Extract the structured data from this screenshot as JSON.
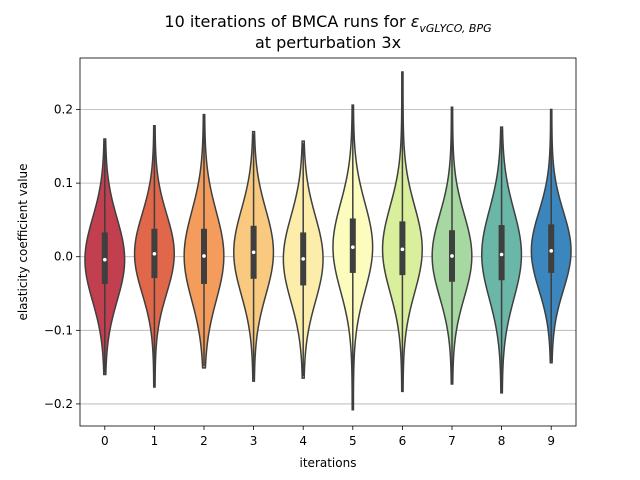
{
  "chart_data": {
    "type": "violin",
    "title_line1_prefix": "10 iterations of BMCA runs for ",
    "title_symbol": "ε",
    "title_subscript": "vGLYCO, BPG",
    "title_line2": "at perturbation 3x",
    "xlabel": "iterations",
    "ylabel": "elasticity coefficient value",
    "categories": [
      "0",
      "1",
      "2",
      "3",
      "4",
      "5",
      "6",
      "7",
      "8",
      "9"
    ],
    "ylim": [
      -0.23,
      0.27
    ],
    "yticks": [
      -0.2,
      -0.1,
      0.0,
      0.1,
      0.2
    ],
    "ytick_labels": [
      "−0.2",
      "−0.1",
      "0.0",
      "0.1",
      "0.2"
    ],
    "grid": "horizontal",
    "series": [
      {
        "category": "0",
        "color": "#c23f4f",
        "min": -0.16,
        "q1": -0.037,
        "median": -0.004,
        "q3": 0.033,
        "max": 0.16
      },
      {
        "category": "1",
        "color": "#e1674b",
        "min": -0.177,
        "q1": -0.029,
        "median": 0.004,
        "q3": 0.038,
        "max": 0.178
      },
      {
        "category": "2",
        "color": "#f49c5b",
        "min": -0.151,
        "q1": -0.037,
        "median": 0.001,
        "q3": 0.038,
        "max": 0.193
      },
      {
        "category": "3",
        "color": "#f8c97e",
        "min": -0.169,
        "q1": -0.03,
        "median": 0.006,
        "q3": 0.042,
        "max": 0.17
      },
      {
        "category": "4",
        "color": "#fcedab",
        "min": -0.165,
        "q1": -0.039,
        "median": -0.003,
        "q3": 0.033,
        "max": 0.157
      },
      {
        "category": "5",
        "color": "#fcfcbf",
        "min": -0.208,
        "q1": -0.022,
        "median": 0.013,
        "q3": 0.052,
        "max": 0.206
      },
      {
        "category": "6",
        "color": "#d9ef9b",
        "min": -0.183,
        "q1": -0.025,
        "median": 0.01,
        "q3": 0.048,
        "max": 0.251
      },
      {
        "category": "7",
        "color": "#a7d8a2",
        "min": -0.173,
        "q1": -0.034,
        "median": 0.001,
        "q3": 0.036,
        "max": 0.203
      },
      {
        "category": "8",
        "color": "#6ab7a8",
        "min": -0.185,
        "q1": -0.032,
        "median": 0.003,
        "q3": 0.043,
        "max": 0.176
      },
      {
        "category": "9",
        "color": "#3b86bd",
        "min": -0.144,
        "q1": -0.022,
        "median": 0.008,
        "q3": 0.044,
        "max": 0.2
      }
    ]
  }
}
